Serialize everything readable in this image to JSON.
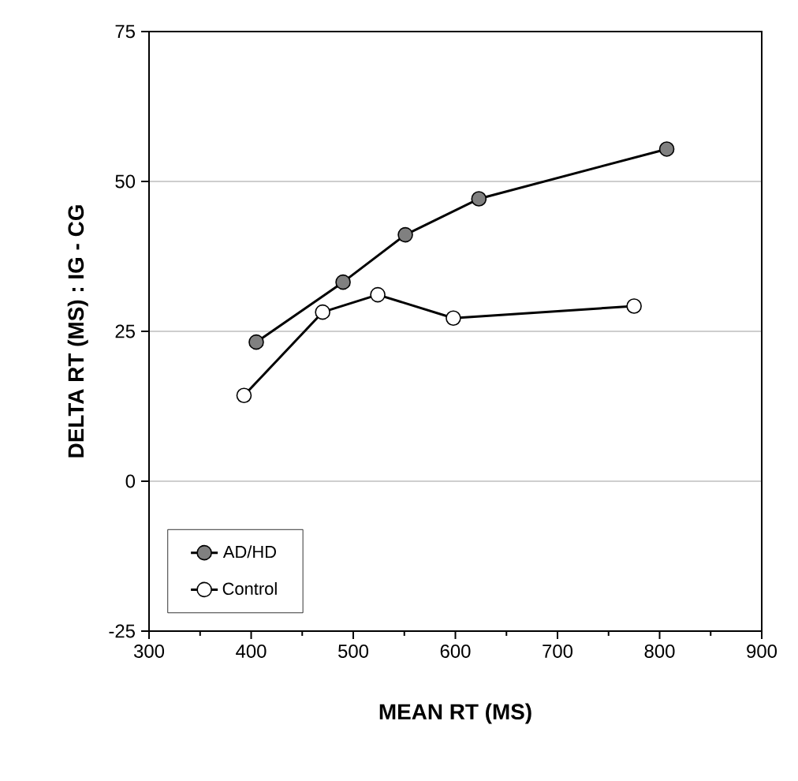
{
  "chart_data": {
    "type": "line",
    "xlabel": "MEAN RT (MS)",
    "ylabel": "DELTA RT (MS) : IG - CG",
    "xlim": [
      300,
      900
    ],
    "xticks": [
      300,
      400,
      500,
      600,
      700,
      800,
      900
    ],
    "ylim": [
      -25,
      75
    ],
    "yticks": [
      -25,
      0,
      25,
      50,
      75
    ],
    "grid": "y",
    "legend": "bottom left",
    "marker": "circle",
    "line_style": "solid",
    "series": [
      {
        "name": "AD/HD",
        "color": "#808080",
        "x": [
          405,
          490,
          551,
          623,
          807
        ],
        "values": [
          23.2,
          33.2,
          41.1,
          47.1,
          55.4
        ]
      },
      {
        "name": "Control",
        "color": "#ffffff",
        "x": [
          393,
          470,
          524,
          598,
          775
        ],
        "values": [
          14.3,
          28.2,
          31.1,
          27.2,
          29.2
        ]
      }
    ]
  }
}
